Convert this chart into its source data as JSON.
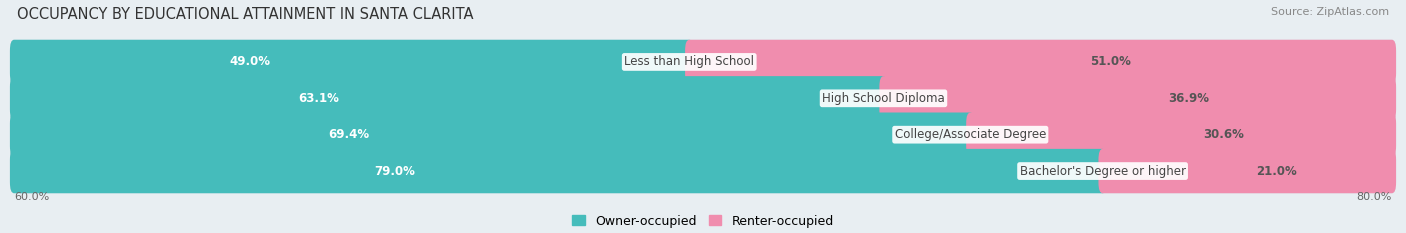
{
  "title": "OCCUPANCY BY EDUCATIONAL ATTAINMENT IN SANTA CLARITA",
  "source": "Source: ZipAtlas.com",
  "categories": [
    "Less than High School",
    "High School Diploma",
    "College/Associate Degree",
    "Bachelor's Degree or higher"
  ],
  "owner_values": [
    49.0,
    63.1,
    69.4,
    79.0
  ],
  "renter_values": [
    51.0,
    36.9,
    30.6,
    21.0
  ],
  "owner_color": "#45BCBB",
  "renter_color": "#F08DAE",
  "background_color": "#E8EEF2",
  "bar_bg_color": "#D5DFE6",
  "title_fontsize": 10.5,
  "source_fontsize": 8,
  "value_fontsize": 8.5,
  "cat_fontsize": 8.5,
  "legend_fontsize": 9,
  "x_axis_left_label": "60.0%",
  "x_axis_right_label": "80.0%",
  "legend_owner": "Owner-occupied",
  "legend_renter": "Renter-occupied"
}
